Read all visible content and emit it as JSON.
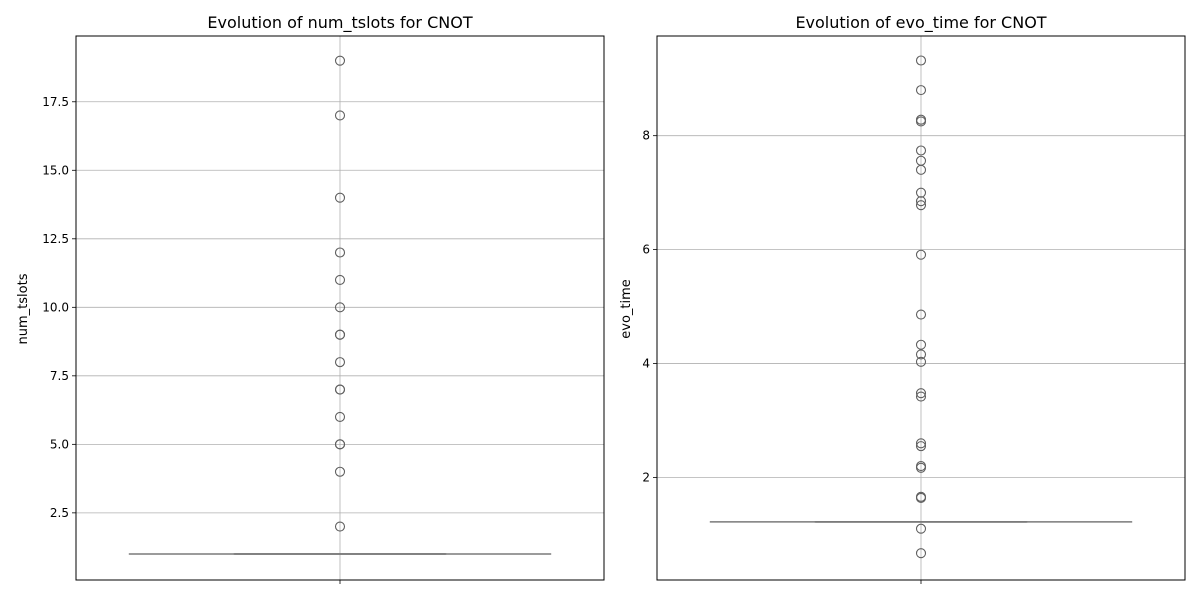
{
  "chart_data": [
    {
      "type": "box",
      "title": "Evolution of num_tslots for CNOT",
      "xlabel": "",
      "ylabel": "num_tslots",
      "ylim": [
        0.05,
        19.9
      ],
      "yticks": [
        2.5,
        5.0,
        7.5,
        10.0,
        12.5,
        15.0,
        17.5
      ],
      "ytick_labels": [
        "2.5",
        "5.0",
        "7.5",
        "10.0",
        "12.5",
        "15.0",
        "17.5"
      ],
      "grid": true,
      "box": {
        "q1": 1,
        "median": 1,
        "q3": 1,
        "whisker_low": 1,
        "whisker_high": 1
      },
      "outliers": [
        2,
        4,
        5,
        5,
        6,
        7,
        7,
        8,
        9,
        9,
        10,
        11,
        12,
        14,
        17,
        19
      ]
    },
    {
      "type": "box",
      "title": "Evolution of evo_time for CNOT",
      "xlabel": "",
      "ylabel": "evo_time",
      "ylim": [
        0.2,
        9.75
      ],
      "yticks": [
        2,
        4,
        6,
        8
      ],
      "ytick_labels": [
        "2",
        "4",
        "6",
        "8"
      ],
      "grid": true,
      "box": {
        "q1": 1.22,
        "median": 1.22,
        "q3": 1.22,
        "whisker_low": 1.22,
        "whisker_high": 1.22
      },
      "outliers": [
        0.67,
        1.1,
        1.64,
        1.66,
        2.17,
        2.2,
        2.55,
        2.6,
        3.42,
        3.48,
        4.03,
        4.16,
        4.33,
        4.86,
        5.91,
        6.78,
        6.85,
        7.0,
        7.4,
        7.56,
        7.74,
        8.25,
        8.28,
        8.8,
        9.32
      ]
    }
  ]
}
